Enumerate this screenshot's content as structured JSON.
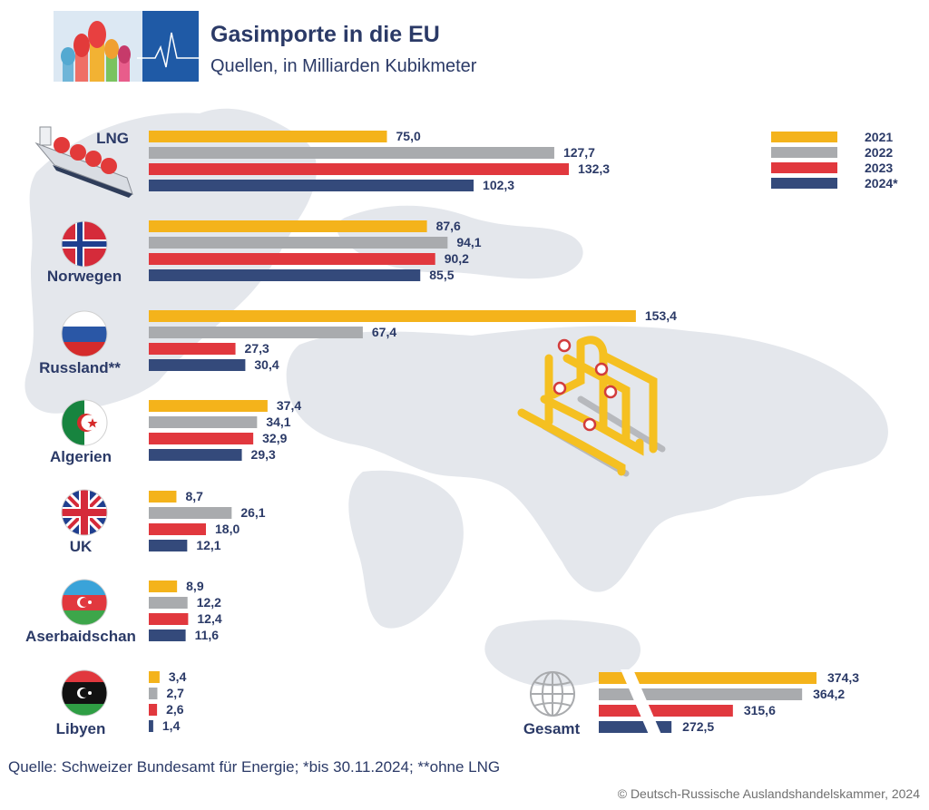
{
  "header": {
    "title": "Gasimporte in die EU",
    "subtitle": "Quellen, in Milliarden Kubikmeter"
  },
  "footer": {
    "source": "Quelle: Schweizer Bundesamt für Energie; *bis 30.11.2024; **ohne LNG",
    "copyright": "© Deutsch-Russische Auslandshandelskammer, 2024"
  },
  "icons": [
    "lng-tanker-icon",
    "norway-flag-icon",
    "russia-flag-icon",
    "algeria-flag-icon",
    "uk-flag-icon",
    "azerbaijan-flag-icon",
    "libya-flag-icon",
    "globe-icon",
    "gas-pipeline-icon"
  ],
  "colors": {
    "2021": "#f4b31b",
    "2022": "#a9abae",
    "2023": "#e1383e",
    "2024": "#344a7b",
    "text": "#2b3a67",
    "map": "#e4e7ec"
  },
  "chart_data": {
    "type": "bar",
    "orientation": "horizontal",
    "title": "Gasimporte in die EU",
    "subtitle": "Quellen, in Milliarden Kubikmeter",
    "categories": [
      "LNG",
      "Norwegen",
      "Russland**",
      "Algerien",
      "UK",
      "Aserbaidschan",
      "Libyen"
    ],
    "series": [
      {
        "name": "2021",
        "color": "#f4b31b",
        "values": [
          75.0,
          87.6,
          153.4,
          37.4,
          8.7,
          8.9,
          3.4
        ]
      },
      {
        "name": "2022",
        "color": "#a9abae",
        "values": [
          127.7,
          94.1,
          67.4,
          34.1,
          26.1,
          12.2,
          2.7
        ]
      },
      {
        "name": "2023",
        "color": "#e1383e",
        "values": [
          132.3,
          90.2,
          27.3,
          32.9,
          18.0,
          12.4,
          2.6
        ]
      },
      {
        "name": "2024*",
        "color": "#344a7b",
        "values": [
          102.3,
          85.5,
          30.4,
          29.3,
          12.1,
          11.6,
          1.4
        ]
      }
    ],
    "value_labels": [
      [
        "75,0",
        "87,6",
        "153,4",
        "37,4",
        "8,7",
        "8,9",
        "3,4"
      ],
      [
        "127,7",
        "94,1",
        "67,4",
        "34,1",
        "26,1",
        "12,2",
        "2,7"
      ],
      [
        "132,3",
        "90,2",
        "27,3",
        "32,9",
        "18,0",
        "12,4",
        "2,6"
      ],
      [
        "102,3",
        "85,5",
        "30,4",
        "29,3",
        "12,1",
        "11,6",
        "1,4"
      ]
    ],
    "total": {
      "label": "Gesamt",
      "values": [
        374.3,
        364.2,
        315.6,
        272.5
      ],
      "value_labels": [
        "374,3",
        "364,2",
        "315,6",
        "272,5"
      ],
      "axis_break": true
    },
    "legend": {
      "position": "top-right",
      "entries": [
        "2021",
        "2022",
        "2023",
        "2024*"
      ]
    },
    "grid": false
  }
}
